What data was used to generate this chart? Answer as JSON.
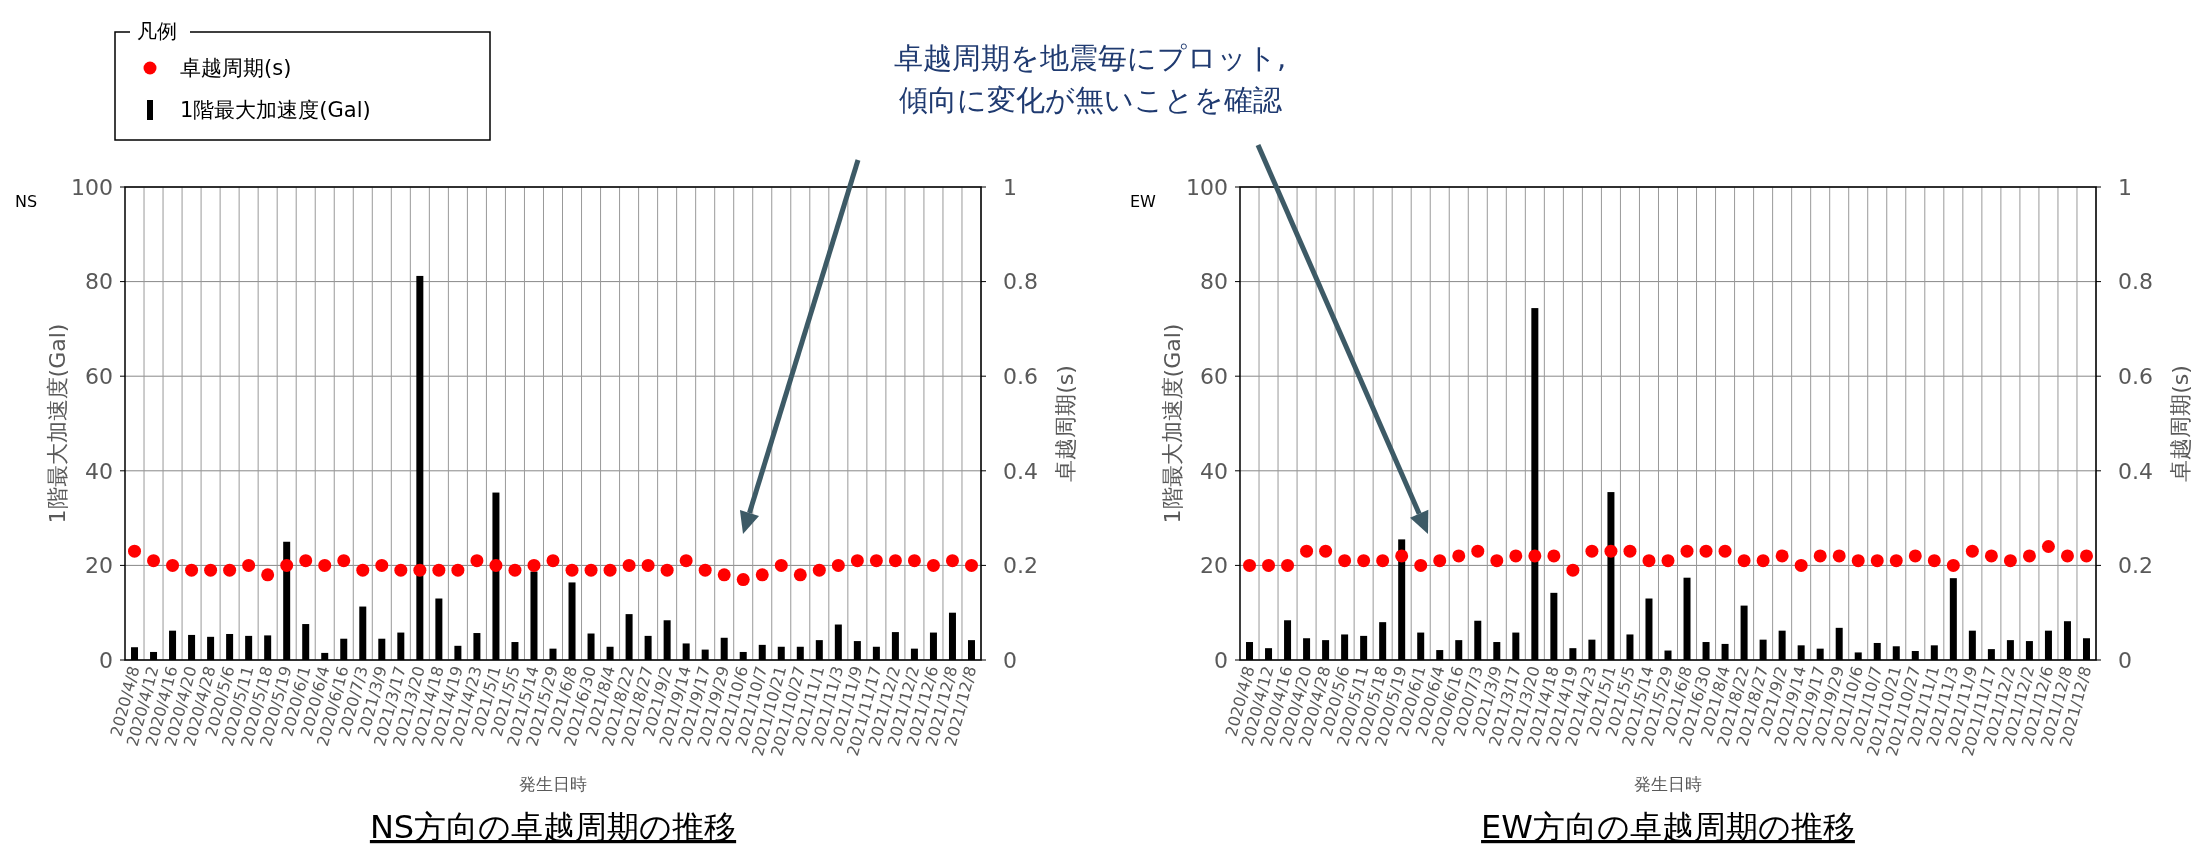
{
  "chart_data": [
    {
      "type": "bar",
      "title": "NS方向の卓越周期の推移",
      "xlabel": "発生日時",
      "ylabel": "1階最大加速度(Gal)",
      "y2label": "卓越周期(s)",
      "legend_title": "凡例",
      "legend": "top left",
      "grid": true,
      "marker": "circle",
      "annotations": [
        "NS",
        "卓越周期を地震毎にプロット,\n傾向に変化が無いことを確認"
      ],
      "categories": [
        "2020/4/8",
        "2020/4/12",
        "2020/4/16",
        "2020/4/20",
        "2020/4/28",
        "2020/5/6",
        "2020/5/11",
        "2020/5/18",
        "2020/5/19",
        "2020/6/1",
        "2020/6/4",
        "2020/6/16",
        "2020/7/3",
        "2021/3/9",
        "2021/3/17",
        "2021/3/20",
        "2021/4/18",
        "2021/4/19",
        "2021/4/23",
        "2021/5/1",
        "2021/5/5",
        "2021/5/14",
        "2021/5/29",
        "2021/6/8",
        "2021/6/30",
        "2021/8/4",
        "2021/8/22",
        "2021/8/27",
        "2021/9/2",
        "2021/9/14",
        "2021/9/17",
        "2021/9/29",
        "2021/10/6",
        "2021/10/7",
        "2021/10/21",
        "2021/10/27",
        "2021/11/1",
        "2021/11/3",
        "2021/11/9",
        "2021/11/17",
        "2021/12/2",
        "2021/12/2",
        "2021/12/6",
        "2021/12/8",
        "2021/12/8"
      ],
      "ylim": [
        0,
        100
      ],
      "yticks": [
        0,
        20,
        40,
        60,
        80,
        100
      ],
      "y2lim": [
        0,
        1
      ],
      "y2ticks": [
        0,
        0.2,
        0.4,
        0.6,
        0.8,
        1
      ],
      "series": [
        {
          "type": "bar",
          "name": "1階最大加速度(Gal)",
          "color": "#000000",
          "values": [
            2.7,
            1.7,
            6.2,
            5.3,
            4.9,
            5.5,
            5.1,
            5.2,
            25,
            7.6,
            1.5,
            4.5,
            11.3,
            4.5,
            5.8,
            81.2,
            13,
            3,
            5.7,
            35.4,
            3.8,
            18.7,
            2.4,
            16.4,
            5.6,
            2.8,
            9.7,
            5.1,
            8.4,
            3.5,
            2.2,
            4.7,
            1.7,
            3.2,
            2.8,
            2.8,
            4.2,
            7.5,
            4,
            2.8,
            5.9,
            2.4,
            5.8,
            10,
            4.2
          ]
        },
        {
          "type": "scatter",
          "name": "卓越周期(s)",
          "color": "#ff0000",
          "axis": "y2",
          "values": [
            0.23,
            0.21,
            0.2,
            0.19,
            0.19,
            0.19,
            0.2,
            0.18,
            0.2,
            0.21,
            0.2,
            0.21,
            0.19,
            0.2,
            0.19,
            0.19,
            0.19,
            0.19,
            0.21,
            0.2,
            0.19,
            0.2,
            0.21,
            0.19,
            0.19,
            0.19,
            0.2,
            0.2,
            0.19,
            0.21,
            0.19,
            0.18,
            0.17,
            0.18,
            0.2,
            0.18,
            0.19,
            0.2,
            0.21,
            0.21,
            0.21,
            0.21,
            0.2,
            0.21,
            0.2
          ]
        }
      ]
    },
    {
      "type": "bar",
      "title": "EW方向の卓越周期の推移",
      "xlabel": "発生日時",
      "ylabel": "1階最大加速度(Gal)",
      "y2label": "卓越周期(s)",
      "grid": true,
      "marker": "circle",
      "annotations": [
        "EW"
      ],
      "categories": [
        "2020/4/8",
        "2020/4/12",
        "2020/4/16",
        "2020/4/20",
        "2020/4/28",
        "2020/5/6",
        "2020/5/11",
        "2020/5/18",
        "2020/5/19",
        "2020/6/1",
        "2020/6/4",
        "2020/6/16",
        "2020/7/3",
        "2021/3/9",
        "2021/3/17",
        "2021/3/20",
        "2021/4/18",
        "2021/4/19",
        "2021/4/23",
        "2021/5/1",
        "2021/5/5",
        "2021/5/14",
        "2021/5/29",
        "2021/6/8",
        "2021/6/30",
        "2021/8/4",
        "2021/8/22",
        "2021/8/27",
        "2021/9/2",
        "2021/9/14",
        "2021/9/17",
        "2021/9/29",
        "2021/10/6",
        "2021/10/7",
        "2021/10/21",
        "2021/10/27",
        "2021/11/1",
        "2021/11/3",
        "2021/11/9",
        "2021/11/17",
        "2021/12/2",
        "2021/12/2",
        "2021/12/6",
        "2021/12/8",
        "2021/12/8"
      ],
      "ylim": [
        0,
        100
      ],
      "yticks": [
        0,
        20,
        40,
        60,
        80,
        100
      ],
      "y2lim": [
        0,
        1
      ],
      "y2ticks": [
        0,
        0.2,
        0.4,
        0.6,
        0.8,
        1
      ],
      "series": [
        {
          "type": "bar",
          "color": "#000000",
          "values": [
            3.8,
            2.5,
            8.4,
            4.6,
            4.2,
            5.4,
            5.1,
            8,
            25.5,
            5.8,
            2.1,
            4.2,
            8.3,
            3.8,
            5.8,
            74.4,
            14.2,
            2.5,
            4.3,
            35.5,
            5.4,
            13,
            2,
            17.4,
            3.8,
            3.4,
            11.5,
            4.3,
            6.2,
            3.1,
            2.4,
            6.8,
            1.6,
            3.6,
            2.9,
            1.9,
            3.1,
            17.3,
            6.2,
            2.3,
            4.2,
            4,
            6.2,
            8.2,
            4.6
          ]
        },
        {
          "type": "scatter",
          "color": "#ff0000",
          "axis": "y2",
          "values": [
            0.2,
            0.2,
            0.2,
            0.23,
            0.23,
            0.21,
            0.21,
            0.21,
            0.22,
            0.2,
            0.21,
            0.22,
            0.23,
            0.21,
            0.22,
            0.22,
            0.22,
            0.19,
            0.23,
            0.23,
            0.23,
            0.21,
            0.21,
            0.23,
            0.23,
            0.23,
            0.21,
            0.21,
            0.22,
            0.2,
            0.22,
            0.22,
            0.21,
            0.21,
            0.21,
            0.22,
            0.21,
            0.2,
            0.23,
            0.22,
            0.21,
            0.22,
            0.24,
            0.22,
            0.22
          ]
        }
      ]
    }
  ]
}
